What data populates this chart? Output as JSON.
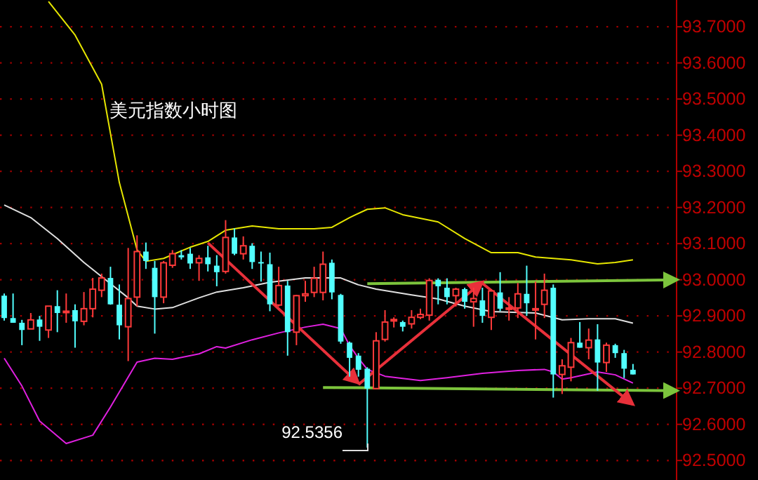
{
  "chart_data": {
    "type": "candlestick",
    "title": "美元指数小时图",
    "categories": [
      null,
      null,
      null,
      null,
      null,
      null,
      null,
      null,
      null,
      null,
      null,
      null,
      null,
      null,
      null,
      null,
      null,
      null,
      null,
      null,
      null,
      null,
      null,
      null,
      null,
      null,
      null,
      null,
      null,
      null,
      null,
      null,
      null,
      null,
      null,
      null,
      null,
      null,
      null,
      null,
      null,
      null,
      null,
      null,
      null,
      null,
      null,
      null,
      null,
      null,
      null,
      null,
      null,
      null,
      null,
      null,
      null,
      null,
      null,
      null,
      null,
      null,
      null,
      null,
      null,
      null,
      null,
      null,
      null,
      null,
      null,
      null,
      null,
      null,
      null,
      null,
      null
    ],
    "ohlc": [
      [
        92.956,
        92.962,
        92.887,
        92.894
      ],
      [
        92.894,
        92.962,
        92.881,
        92.881
      ],
      [
        92.881,
        92.889,
        92.819,
        92.861
      ],
      [
        92.864,
        92.908,
        92.864,
        92.889
      ],
      [
        92.89,
        92.9,
        92.831,
        92.87
      ],
      [
        92.861,
        92.927,
        92.839,
        92.927
      ],
      [
        92.927,
        92.971,
        92.855,
        92.908
      ],
      [
        92.911,
        92.962,
        92.881,
        92.913
      ],
      [
        92.916,
        92.932,
        92.812,
        92.885
      ],
      [
        92.885,
        92.966,
        92.874,
        92.92
      ],
      [
        92.92,
        93.005,
        92.896,
        92.974
      ],
      [
        92.971,
        93.017,
        92.952,
        93.005
      ],
      [
        93.005,
        93.036,
        92.931,
        92.932
      ],
      [
        92.931,
        92.987,
        92.835,
        92.874
      ],
      [
        92.87,
        93.088,
        92.775,
        92.948
      ],
      [
        92.952,
        93.123,
        92.926,
        93.078
      ],
      [
        93.078,
        93.103,
        93.03,
        93.052
      ],
      [
        93.033,
        93.052,
        92.851,
        92.952
      ],
      [
        92.952,
        93.052,
        92.935,
        93.047
      ],
      [
        93.04,
        93.082,
        93.033,
        93.072
      ],
      [
        93.068,
        93.082,
        93.056,
        93.062
      ],
      [
        93.072,
        93.088,
        93.03,
        93.045
      ],
      [
        93.047,
        93.068,
        92.997,
        93.059
      ],
      [
        93.062,
        93.094,
        93.023,
        93.043
      ],
      [
        93.039,
        93.068,
        92.982,
        93.021
      ],
      [
        93.023,
        93.165,
        93.017,
        93.117
      ],
      [
        93.117,
        93.142,
        93.068,
        93.072
      ],
      [
        93.072,
        93.12,
        93.056,
        93.094
      ],
      [
        93.094,
        93.101,
        93.03,
        93.049
      ],
      [
        93.049,
        93.078,
        92.995,
        93.045
      ],
      [
        93.043,
        93.075,
        92.913,
        92.932
      ],
      [
        92.93,
        93.036,
        92.926,
        92.984
      ],
      [
        92.984,
        92.997,
        92.79,
        92.855
      ],
      [
        92.855,
        92.958,
        92.819,
        92.956
      ],
      [
        92.956,
        92.997,
        92.939,
        92.961
      ],
      [
        92.965,
        93.036,
        92.952,
        93.004
      ],
      [
        92.965,
        93.078,
        92.943,
        93.043
      ],
      [
        93.047,
        93.056,
        92.946,
        92.965
      ],
      [
        92.958,
        92.961,
        92.823,
        92.829
      ],
      [
        92.826,
        92.829,
        92.732,
        92.784
      ],
      [
        92.79,
        92.797,
        92.732,
        92.751
      ],
      [
        92.754,
        92.758,
        92.5356,
        92.699
      ],
      [
        92.699,
        92.855,
        92.699,
        92.831
      ],
      [
        92.835,
        92.916,
        92.829,
        92.883
      ],
      [
        92.886,
        92.896,
        92.868,
        92.89
      ],
      [
        92.883,
        92.887,
        92.857,
        92.87
      ],
      [
        92.878,
        92.916,
        92.865,
        92.896
      ],
      [
        92.896,
        92.92,
        92.891,
        92.904
      ],
      [
        92.902,
        93.004,
        92.887,
        92.998
      ],
      [
        93.0,
        93.004,
        92.932,
        92.982
      ],
      [
        92.978,
        93.004,
        92.932,
        92.952
      ],
      [
        92.956,
        92.978,
        92.926,
        92.974
      ],
      [
        92.974,
        92.978,
        92.92,
        92.939
      ],
      [
        92.939,
        92.978,
        92.87,
        92.948
      ],
      [
        92.943,
        92.978,
        92.881,
        92.9
      ],
      [
        92.896,
        92.974,
        92.861,
        92.969
      ],
      [
        92.965,
        93.021,
        92.913,
        92.92
      ],
      [
        92.92,
        92.952,
        92.887,
        92.922
      ],
      [
        92.922,
        92.991,
        92.894,
        92.961
      ],
      [
        92.961,
        93.039,
        92.9,
        92.935
      ],
      [
        92.917,
        92.995,
        92.835,
        92.92
      ],
      [
        92.932,
        93.017,
        92.894,
        92.971
      ],
      [
        92.978,
        92.987,
        92.674,
        92.738
      ],
      [
        92.738,
        92.78,
        92.684,
        92.762
      ],
      [
        92.758,
        92.839,
        92.719,
        92.826
      ],
      [
        92.826,
        92.883,
        92.812,
        92.812
      ],
      [
        92.812,
        92.865,
        92.78,
        92.833
      ],
      [
        92.835,
        92.877,
        92.693,
        92.771
      ],
      [
        92.771,
        92.826,
        92.745,
        92.819
      ],
      [
        92.819,
        92.823,
        92.784,
        92.797
      ],
      [
        92.797,
        92.806,
        92.728,
        92.754
      ],
      [
        92.751,
        92.767,
        92.738,
        92.738
      ],
      null,
      null,
      null,
      null,
      null
    ],
    "colors": [
      "#52ffff",
      "#52ffff",
      "#52ffff",
      "#ff3a3a",
      "#52ffff",
      "#ff3a3a",
      "#52ffff",
      "#ff3a3a",
      "#52ffff",
      "#ff3a3a",
      "#ff3a3a",
      "#ff3a3a",
      "#52ffff",
      "#52ffff",
      "#ff3a3a",
      "#ff3a3a",
      "#52ffff",
      "#52ffff",
      "#ff3a3a",
      "#ff3a3a",
      "#52ffff",
      "#52ffff",
      "#ff3a3a",
      "#52ffff",
      "#52ffff",
      "#ff3a3a",
      "#52ffff",
      "#ff3a3a",
      "#52ffff",
      "#52ffff",
      "#52ffff",
      "#ff3a3a",
      "#52ffff",
      "#ff3a3a",
      "#ff3a3a",
      "#ff3a3a",
      "#ff3a3a",
      "#52ffff",
      "#52ffff",
      "#52ffff",
      "#52ffff",
      "#52ffff",
      "#ff3a3a",
      "#ff3a3a",
      "#ff3a3a",
      "#52ffff",
      "#ff3a3a",
      "#ff3a3a",
      "#ff3a3a",
      "#52ffff",
      "#52ffff",
      "#ff3a3a",
      "#52ffff",
      "#ff3a3a",
      "#52ffff",
      "#ff3a3a",
      "#52ffff",
      "#ff3a3a",
      "#ff3a3a",
      "#52ffff",
      "#ff3a3a",
      "#ff3a3a",
      "#52ffff",
      "#ff3a3a",
      "#ff3a3a",
      "#52ffff",
      "#ff3a3a",
      "#52ffff",
      "#ff3a3a",
      "#52ffff",
      "#52ffff",
      "#52ffff",
      null,
      null,
      null,
      null,
      null
    ],
    "series": [
      {
        "type": "line",
        "color": "#e6e600",
        "values": [
          null,
          null,
          null,
          null,
          null,
          93.77,
          null,
          null,
          93.677,
          null,
          null,
          93.541,
          93.405,
          93.269,
          null,
          93.083,
          93.051,
          null,
          93.059,
          null,
          null,
          93.09,
          null,
          93.106,
          null,
          93.137,
          null,
          null,
          93.149,
          null,
          null,
          93.141,
          null,
          null,
          null,
          93.141,
          null,
          93.145,
          null,
          93.172,
          null,
          93.195,
          null,
          93.199,
          null,
          93.18,
          null,
          null,
          null,
          93.16,
          null,
          null,
          93.114,
          null,
          null,
          93.075,
          null,
          null,
          93.075,
          null,
          93.063,
          null,
          93.059,
          null,
          93.055,
          null,
          null,
          93.044,
          null,
          93.048,
          null,
          93.055,
          null,
          null,
          null,
          null,
          null
        ]
      },
      {
        "type": "line",
        "color": "#e0e0e0",
        "values": [
          93.207,
          null,
          null,
          93.172,
          null,
          null,
          93.114,
          null,
          null,
          93.048,
          null,
          null,
          92.989,
          null,
          92.95,
          92.927,
          null,
          92.919,
          null,
          92.923,
          null,
          null,
          92.95,
          null,
          92.966,
          null,
          null,
          92.978,
          null,
          null,
          92.993,
          null,
          null,
          null,
          93.005,
          null,
          null,
          null,
          93.005,
          null,
          92.986,
          null,
          92.974,
          null,
          null,
          null,
          92.958,
          null,
          null,
          92.947,
          null,
          null,
          92.927,
          null,
          null,
          92.912,
          null,
          null,
          null,
          null,
          92.908,
          null,
          null,
          92.889,
          null,
          null,
          92.892,
          null,
          null,
          92.892,
          null,
          92.88,
          null,
          null,
          null,
          null,
          null
        ]
      },
      {
        "type": "line",
        "color": "#e020e0",
        "values": [
          92.783,
          null,
          92.706,
          null,
          92.609,
          null,
          null,
          92.547,
          null,
          null,
          92.57,
          null,
          92.648,
          null,
          null,
          92.772,
          null,
          92.783,
          null,
          92.78,
          null,
          null,
          92.795,
          null,
          92.815,
          92.811,
          null,
          null,
          92.834,
          null,
          null,
          92.853,
          null,
          null,
          92.869,
          null,
          92.877,
          null,
          92.865,
          92.818,
          92.783,
          92.752,
          null,
          92.733,
          null,
          null,
          null,
          92.721,
          null,
          null,
          92.729,
          null,
          null,
          null,
          92.741,
          null,
          null,
          null,
          92.749,
          null,
          null,
          92.752,
          92.745,
          92.725,
          92.729,
          null,
          null,
          92.745,
          null,
          92.737,
          null,
          92.714,
          null,
          null,
          null,
          null,
          null
        ]
      },
      {
        "type": "line",
        "color": "#7cc43c",
        "values": [
          null,
          null,
          null,
          null,
          null,
          null,
          null,
          null,
          null,
          null,
          null,
          null,
          null,
          null,
          null,
          null,
          null,
          null,
          null,
          null,
          null,
          null,
          null,
          null,
          null,
          null,
          null,
          null,
          null,
          null,
          null,
          null,
          null,
          null,
          null,
          null,
          null,
          null,
          null,
          null,
          null,
          92.989,
          null,
          null,
          null,
          null,
          null,
          null,
          null,
          null,
          null,
          null,
          null,
          null,
          null,
          null,
          null,
          null,
          null,
          null,
          null,
          null,
          null,
          null,
          null,
          null,
          null,
          null,
          null,
          null,
          null,
          null,
          null,
          null,
          null,
          null,
          93.0
        ]
      },
      {
        "type": "line",
        "color": "#7cc43c",
        "values": [
          null,
          null,
          null,
          null,
          null,
          null,
          null,
          null,
          null,
          null,
          null,
          null,
          null,
          null,
          null,
          null,
          null,
          null,
          null,
          null,
          null,
          null,
          null,
          null,
          null,
          null,
          null,
          null,
          null,
          null,
          null,
          null,
          null,
          null,
          null,
          null,
          92.702,
          null,
          null,
          null,
          null,
          null,
          null,
          null,
          null,
          null,
          null,
          null,
          null,
          null,
          null,
          null,
          null,
          null,
          null,
          null,
          null,
          null,
          null,
          null,
          null,
          null,
          null,
          null,
          null,
          null,
          null,
          null,
          null,
          null,
          null,
          null,
          null,
          null,
          null,
          null,
          92.693
        ]
      },
      {
        "type": "line",
        "color": "#e8303a",
        "values": [
          null,
          null,
          null,
          null,
          null,
          null,
          null,
          null,
          null,
          null,
          null,
          null,
          null,
          null,
          null,
          null,
          null,
          null,
          null,
          null,
          null,
          null,
          null,
          93.102,
          null,
          null,
          null,
          null,
          null,
          null,
          null,
          null,
          null,
          null,
          null,
          null,
          null,
          null,
          null,
          null,
          92.714,
          null,
          null,
          null,
          null,
          null,
          null,
          null,
          null,
          null,
          null,
          null,
          null,
          null,
          null,
          null,
          null,
          null,
          null,
          null,
          null,
          null,
          null,
          null,
          null,
          null,
          null,
          null,
          null,
          null,
          null,
          null,
          null,
          null,
          null,
          null,
          null
        ]
      },
      {
        "type": "line",
        "color": "#e8303a",
        "values": [
          null,
          null,
          null,
          null,
          null,
          null,
          null,
          null,
          null,
          null,
          null,
          null,
          null,
          null,
          null,
          null,
          null,
          null,
          null,
          null,
          null,
          null,
          null,
          null,
          null,
          null,
          null,
          null,
          null,
          null,
          null,
          null,
          null,
          null,
          null,
          null,
          null,
          null,
          null,
          null,
          92.71,
          null,
          null,
          null,
          null,
          null,
          null,
          null,
          null,
          null,
          null,
          null,
          null,
          null,
          92.994,
          null,
          null,
          null,
          null,
          null,
          null,
          null,
          null,
          null,
          null,
          null,
          null,
          null,
          null,
          null,
          null,
          null,
          null,
          null,
          null,
          null,
          null
        ]
      },
      {
        "type": "line",
        "color": "#e8303a",
        "values": [
          null,
          null,
          null,
          null,
          null,
          null,
          null,
          null,
          null,
          null,
          null,
          null,
          null,
          null,
          null,
          null,
          null,
          null,
          null,
          null,
          null,
          null,
          null,
          null,
          null,
          null,
          null,
          null,
          null,
          null,
          null,
          null,
          null,
          null,
          null,
          null,
          null,
          null,
          null,
          null,
          null,
          null,
          null,
          null,
          null,
          null,
          null,
          null,
          null,
          null,
          null,
          null,
          null,
          null,
          92.99,
          null,
          null,
          null,
          null,
          null,
          null,
          null,
          null,
          null,
          null,
          null,
          null,
          null,
          null,
          null,
          null,
          92.655,
          null,
          null,
          null,
          null,
          null
        ]
      }
    ],
    "ylim": [
      92.446,
      93.774
    ],
    "yticks": [
      {
        "value": 92.5,
        "label": "92.5000"
      },
      {
        "value": 92.6,
        "label": "92.6000"
      },
      {
        "value": 92.7,
        "label": "92.7000"
      },
      {
        "value": 92.8,
        "label": "92.8000"
      },
      {
        "value": 92.9,
        "label": "92.9000"
      },
      {
        "value": 93.0,
        "label": "93.0000"
      },
      {
        "value": 93.1,
        "label": "93.1000"
      },
      {
        "value": 93.2,
        "label": "93.2000"
      },
      {
        "value": 93.3,
        "label": "93.3000"
      },
      {
        "value": 93.4,
        "label": "93.4000"
      },
      {
        "value": 93.5,
        "label": "93.5000"
      },
      {
        "value": 93.6,
        "label": "93.6000"
      },
      {
        "value": 93.7,
        "label": "93.7000"
      }
    ],
    "grid": "y",
    "tick_labels": "y",
    "annotations": [
      "92.5356"
    ]
  }
}
